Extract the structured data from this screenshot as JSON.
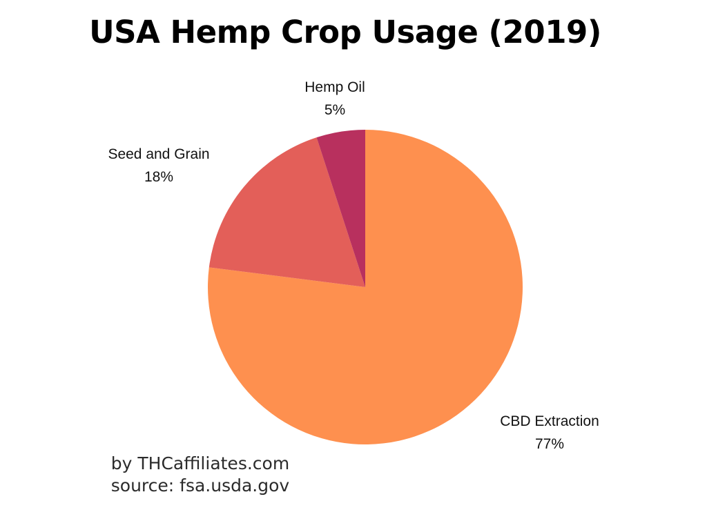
{
  "chart_data": {
    "type": "pie",
    "title": "USA Hemp Crop Usage (2019)",
    "slices": [
      {
        "label": "CBD Extraction",
        "value": 77,
        "display": "77%",
        "color": "#FE904F"
      },
      {
        "label": "Seed and Grain",
        "value": 18,
        "display": "18%",
        "color": "#E35F59"
      },
      {
        "label": "Hemp Oil",
        "value": 5,
        "display": "5%",
        "color": "#B8305E"
      }
    ],
    "start": "12 o'clock",
    "direction": "clockwise",
    "legend": "none (labels outside slices)"
  },
  "credits": {
    "byline": "by THCaffiliates.com",
    "source": "source: fsa.usda.gov"
  }
}
